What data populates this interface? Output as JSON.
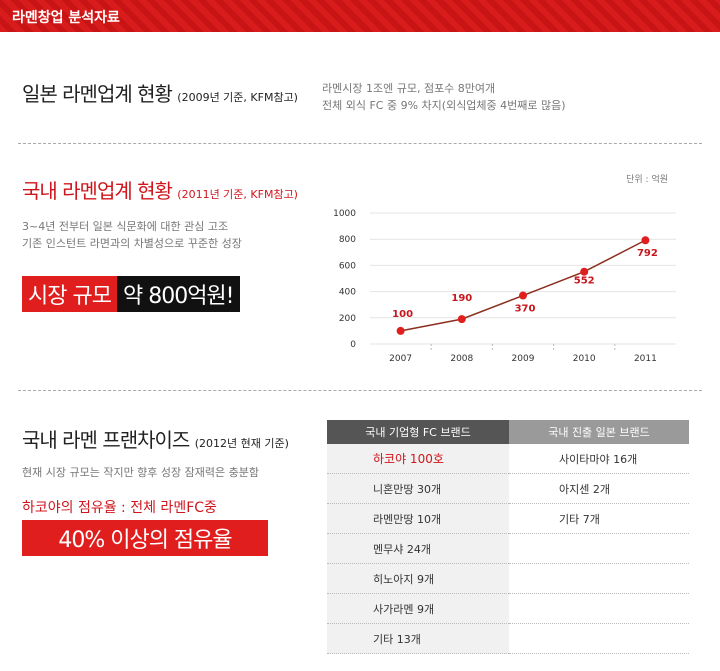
{
  "header": {
    "title": "라멘창업 분석자료"
  },
  "section1": {
    "title": "일본 라멘업계 현황",
    "note": "(2009년 기준, KFM참고)",
    "lines": [
      "라멘시장 1조엔 규모, 점포수 8만여개",
      "전체 외식 FC 중 9% 차지(외식업체중 4번째로 많음)"
    ]
  },
  "section2": {
    "title": "국내 라멘업계 현황",
    "note": "(2011년 기준, KFM참고)",
    "lines": [
      "3~4년 전부터 일본 식문화에 대한 관심 고조",
      "기존 인스턴트 라면과의 차별성으로 꾸준한 성장"
    ],
    "highlight": [
      "시장 규모",
      "약 800억원!"
    ]
  },
  "chart_data": {
    "type": "line",
    "unit": "단위 : 억원",
    "categories": [
      "2007",
      "2008",
      "2009",
      "2010",
      "2011"
    ],
    "values": [
      100,
      190,
      370,
      552,
      792
    ],
    "line_color": "#8b2f1e",
    "marker_color": "#e01e1e",
    "label_color": "#c8161d",
    "ylim": [
      0,
      1000
    ],
    "yticks": [
      0,
      200,
      400,
      600,
      800,
      1000
    ],
    "grid": true
  },
  "section3": {
    "title": "국내 라멘 프랜차이즈",
    "note": "(2012년 현재 기준)",
    "line": "현재 시장 규모는 작지만 향후 성장 잠재력은 충분함",
    "red_line": "하코야의 점유율 : 전체 라멘FC중",
    "highlight": "40% 이상의 점유율"
  },
  "table": {
    "headers": [
      "국내 기업형 FC 브랜드",
      "국내 진출 일본 브랜드"
    ],
    "col1": [
      "하코야  100호",
      "니혼만땅  30개",
      "라멘만땅 10개",
      "멘무샤 24개",
      "히노아지 9개",
      "사가라멘  9개",
      "기타 13개"
    ],
    "col2": [
      "사이타마야 16개",
      "아지센 2개",
      "기타 7개"
    ]
  }
}
